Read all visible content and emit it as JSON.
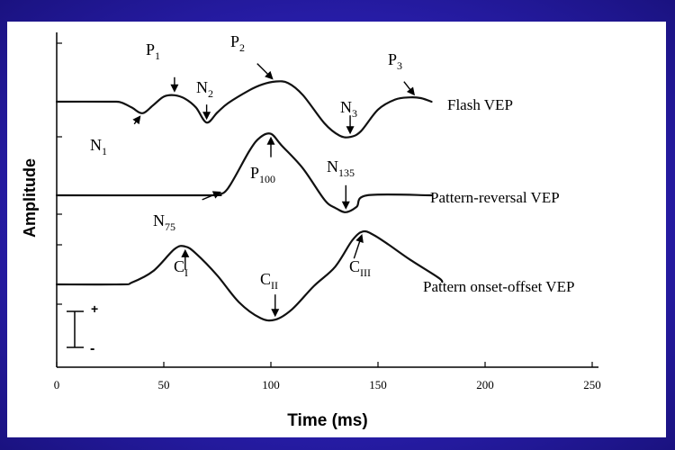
{
  "chart_data": {
    "type": "line",
    "xlabel": "Time (ms)",
    "ylabel": "Amplitude",
    "xlim": [
      0,
      250
    ],
    "x_ticks": [
      "0",
      "50",
      "100",
      "150",
      "200",
      "250"
    ],
    "grid": false,
    "series": [
      {
        "name": "Flash VEP",
        "points": [
          [
            0,
            0
          ],
          [
            25,
            0
          ],
          [
            30,
            -0.1
          ],
          [
            35,
            -0.8
          ],
          [
            40,
            -1.6
          ],
          [
            45,
            -0.5
          ],
          [
            50,
            0.7
          ],
          [
            55,
            0.9
          ],
          [
            60,
            0.4
          ],
          [
            65,
            -0.8
          ],
          [
            70,
            -2.9
          ],
          [
            75,
            -1.5
          ],
          [
            80,
            -0.2
          ],
          [
            90,
            1.6
          ],
          [
            96,
            2.4
          ],
          [
            102,
            2.8
          ],
          [
            108,
            2.6
          ],
          [
            115,
            0.9
          ],
          [
            125,
            -3.0
          ],
          [
            132,
            -4.7
          ],
          [
            137,
            -4.9
          ],
          [
            142,
            -4.1
          ],
          [
            150,
            -1.1
          ],
          [
            158,
            0.3
          ],
          [
            165,
            0.6
          ],
          [
            170,
            0.5
          ],
          [
            175,
            0.0
          ]
        ]
      },
      {
        "name": "Pattern-reversal VEP",
        "points": [
          [
            0,
            0
          ],
          [
            70,
            0
          ],
          [
            75,
            0.1
          ],
          [
            80,
            0.8
          ],
          [
            90,
            5.0
          ],
          [
            95,
            6.5
          ],
          [
            100,
            6.9
          ],
          [
            105,
            5.6
          ],
          [
            115,
            3.0
          ],
          [
            125,
            -0.5
          ],
          [
            130,
            -1.4
          ],
          [
            135,
            -1.9
          ],
          [
            140,
            -1.3
          ],
          [
            145,
            0.0
          ],
          [
            175,
            0.0
          ]
        ]
      },
      {
        "name": "Pattern onset-offset VEP",
        "points": [
          [
            0,
            0
          ],
          [
            30,
            0
          ],
          [
            35,
            0.2
          ],
          [
            45,
            1.5
          ],
          [
            55,
            4.0
          ],
          [
            60,
            4.3
          ],
          [
            65,
            3.5
          ],
          [
            75,
            1.0
          ],
          [
            85,
            -2.0
          ],
          [
            95,
            -3.8
          ],
          [
            102,
            -4.0
          ],
          [
            110,
            -2.8
          ],
          [
            120,
            -0.2
          ],
          [
            130,
            2.0
          ],
          [
            138,
            5.0
          ],
          [
            143,
            6.0
          ],
          [
            148,
            5.6
          ],
          [
            155,
            4.5
          ],
          [
            165,
            2.8
          ],
          [
            178,
            0.8
          ],
          [
            180,
            0.3
          ]
        ]
      }
    ],
    "annotations": [
      {
        "series": 0,
        "label": "N",
        "sub": "1",
        "x": 40
      },
      {
        "series": 0,
        "label": "P",
        "sub": "1",
        "x": 55
      },
      {
        "series": 0,
        "label": "N",
        "sub": "2",
        "x": 70
      },
      {
        "series": 0,
        "label": "P",
        "sub": "2",
        "x": 102
      },
      {
        "series": 0,
        "label": "N",
        "sub": "3",
        "x": 137
      },
      {
        "series": 0,
        "label": "P",
        "sub": "3",
        "x": 168
      },
      {
        "series": 1,
        "label": "N",
        "sub": "75",
        "x": 78
      },
      {
        "series": 1,
        "label": "P",
        "sub": "100",
        "x": 100
      },
      {
        "series": 1,
        "label": "N",
        "sub": "135",
        "x": 135
      },
      {
        "series": 2,
        "label": "C",
        "sub": "I",
        "x": 60
      },
      {
        "series": 2,
        "label": "C",
        "sub": "II",
        "x": 102
      },
      {
        "series": 2,
        "label": "C",
        "sub": "III",
        "x": 143
      }
    ],
    "polarity": {
      "plus": "+",
      "minus": "-"
    }
  }
}
